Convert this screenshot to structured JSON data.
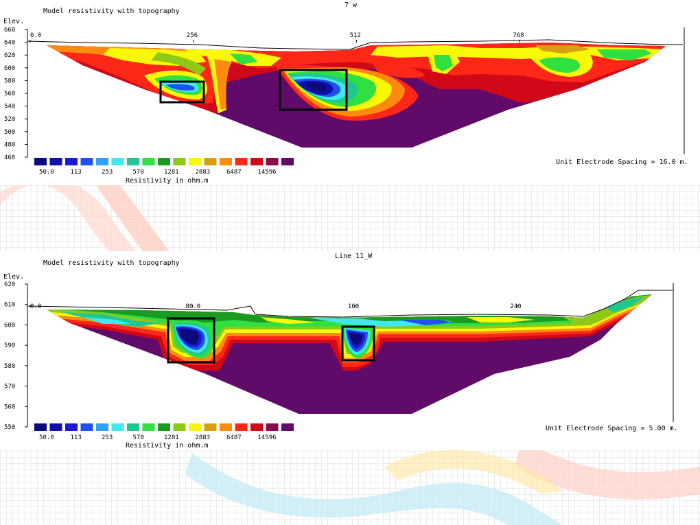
{
  "chart_data": [
    {
      "type": "heatmap",
      "title": "Model resistivity with topography",
      "subtitle": "7 w",
      "ylabel": "Elev.",
      "y_ticks": [
        "660",
        "640",
        "620",
        "600",
        "580",
        "560",
        "540",
        "520",
        "500",
        "480",
        "460"
      ],
      "x_ticks": [
        "0.0",
        "256",
        "512",
        "768"
      ],
      "x_tick_values": [
        0,
        256,
        512,
        768
      ],
      "x_range": [
        0,
        1040
      ],
      "y_range": [
        460,
        660
      ],
      "color_scale": [
        "#0a0a7a",
        "#1010a8",
        "#1a1ad0",
        "#2050f0",
        "#30a0ff",
        "#40e8f0",
        "#20c890",
        "#30e040",
        "#1a9a20",
        "#90c818",
        "#f8f808",
        "#d8a010",
        "#ff8a10",
        "#ff2818",
        "#d00818",
        "#8a0a4a",
        "#600a6a"
      ],
      "legend_values": [
        "50.0",
        "113",
        "253",
        "570",
        "1281",
        "2883",
        "6487",
        "14596"
      ],
      "legend_title": "Resistivity in ohm.m",
      "unit_spacing_label": "Unit Electrode Spacing = 16.0 m."
    },
    {
      "type": "heatmap",
      "title": "Model resistivity with topography",
      "subtitle": "Line 11_W",
      "ylabel": "Elev.",
      "y_ticks": [
        "620",
        "610",
        "600",
        "590",
        "580",
        "570",
        "560",
        "550"
      ],
      "x_ticks": [
        "0.0",
        "80.0",
        "160",
        "240"
      ],
      "x_tick_values": [
        0,
        80,
        160,
        240
      ],
      "x_range": [
        0,
        315
      ],
      "y_range": [
        550,
        620
      ],
      "color_scale": [
        "#0a0a7a",
        "#1010a8",
        "#1a1ad0",
        "#2050f0",
        "#30a0ff",
        "#40e8f0",
        "#20c890",
        "#30e040",
        "#1a9a20",
        "#90c818",
        "#f8f808",
        "#d8a010",
        "#ff8a10",
        "#ff2818",
        "#d00818",
        "#8a0a4a",
        "#600a6a"
      ],
      "legend_values": [
        "50.0",
        "113",
        "253",
        "570",
        "1281",
        "2883",
        "6487",
        "14596"
      ],
      "legend_title": "Resistivity in ohm.m",
      "unit_spacing_label": "Unit Electrode Spacing = 5.00 m."
    }
  ]
}
